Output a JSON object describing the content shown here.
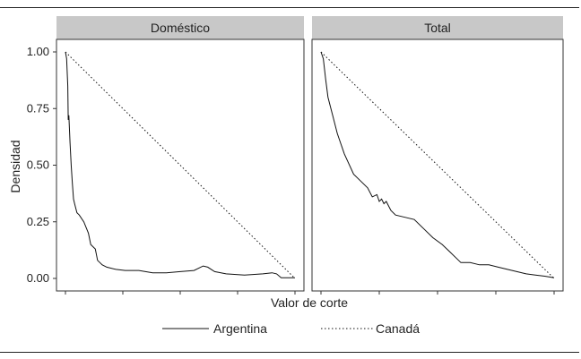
{
  "chart_data": {
    "type": "line",
    "ylabel": "Densidad",
    "xlabel": "Valor de corte",
    "ylim": [
      0,
      1
    ],
    "xlim": [
      0,
      1
    ],
    "y_ticks": [
      "0.00",
      "0.25",
      "0.50",
      "0.75",
      "1.00"
    ],
    "grid": false,
    "legend_position": "bottom",
    "colors": {
      "line": "#111111",
      "strip": "#c8c8c8",
      "panel_border": "#333333"
    },
    "panels": [
      {
        "title": "Doméstico",
        "series": [
          {
            "name": "Argentina",
            "style": "solid",
            "x": [
              0.0,
              0.005,
              0.01,
              0.012,
              0.015,
              0.02,
              0.025,
              0.03,
              0.035,
              0.04,
              0.05,
              0.06,
              0.08,
              0.1,
              0.11,
              0.13,
              0.14,
              0.15,
              0.16,
              0.18,
              0.22,
              0.26,
              0.32,
              0.38,
              0.44,
              0.5,
              0.56,
              0.6,
              0.62,
              0.65,
              0.7,
              0.78,
              0.86,
              0.9,
              0.92,
              0.94,
              1.0
            ],
            "y": [
              1.0,
              0.97,
              0.85,
              0.7,
              0.72,
              0.6,
              0.5,
              0.42,
              0.35,
              0.33,
              0.29,
              0.28,
              0.25,
              0.2,
              0.15,
              0.13,
              0.08,
              0.07,
              0.06,
              0.05,
              0.04,
              0.035,
              0.035,
              0.025,
              0.025,
              0.03,
              0.035,
              0.055,
              0.05,
              0.03,
              0.02,
              0.015,
              0.02,
              0.025,
              0.02,
              0.003,
              0.003
            ]
          },
          {
            "name": "Canadá",
            "style": "dotted",
            "x": [
              0.0,
              1.0
            ],
            "y": [
              1.0,
              0.0
            ]
          }
        ]
      },
      {
        "title": "Total",
        "series": [
          {
            "name": "Argentina",
            "style": "solid",
            "x": [
              0.0,
              0.01,
              0.02,
              0.03,
              0.05,
              0.07,
              0.1,
              0.14,
              0.17,
              0.2,
              0.22,
              0.24,
              0.25,
              0.26,
              0.27,
              0.28,
              0.3,
              0.32,
              0.36,
              0.4,
              0.44,
              0.48,
              0.52,
              0.55,
              0.58,
              0.6,
              0.64,
              0.68,
              0.72,
              0.76,
              0.8,
              0.84,
              0.88,
              0.92,
              0.96,
              1.0
            ],
            "y": [
              1.0,
              0.97,
              0.88,
              0.8,
              0.72,
              0.64,
              0.55,
              0.46,
              0.43,
              0.4,
              0.36,
              0.37,
              0.34,
              0.35,
              0.33,
              0.34,
              0.3,
              0.28,
              0.27,
              0.26,
              0.22,
              0.18,
              0.15,
              0.12,
              0.09,
              0.07,
              0.07,
              0.06,
              0.06,
              0.05,
              0.04,
              0.03,
              0.02,
              0.015,
              0.01,
              0.003
            ]
          },
          {
            "name": "Canadá",
            "style": "dotted",
            "x": [
              0.0,
              1.0
            ],
            "y": [
              1.0,
              0.0
            ]
          }
        ]
      }
    ],
    "legend": [
      {
        "name": "Argentina",
        "style": "solid"
      },
      {
        "name": "Canadá",
        "style": "dotted"
      }
    ]
  }
}
